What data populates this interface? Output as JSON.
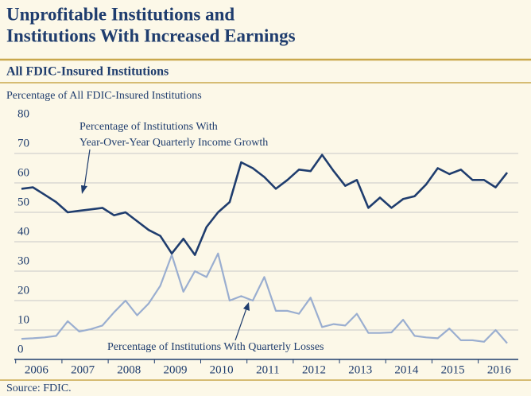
{
  "chart_data": {
    "type": "line",
    "title": [
      "Unprofitable Institutions and",
      "Institutions With Increased Earnings"
    ],
    "subtitle": "All FDIC-Insured Institutions",
    "y_label": "Percentage of All FDIC-Insured Institutions",
    "source": "Source: FDIC.",
    "categories": [
      "2006",
      null,
      null,
      null,
      "2007",
      null,
      null,
      null,
      "2008",
      null,
      null,
      null,
      "2009",
      null,
      null,
      null,
      "2010",
      null,
      null,
      null,
      "2011",
      null,
      null,
      null,
      "2012",
      null,
      null,
      null,
      "2013",
      null,
      null,
      null,
      "2014",
      null,
      null,
      null,
      "2015",
      null,
      null,
      null,
      "2016",
      null,
      null
    ],
    "series": [
      {
        "name": "Percentage of Institutions With Year-Over-Year Quarterly Income Growth",
        "color": "#1f3d6e",
        "values": [
          58,
          58.5,
          56,
          53.5,
          50,
          50.5,
          51,
          51.5,
          49,
          50,
          47,
          44,
          42,
          36,
          41,
          35.5,
          45,
          50,
          53.5,
          67,
          65,
          62,
          58,
          61,
          64.5,
          64,
          69.5,
          64,
          59,
          61,
          51.5,
          55,
          51.5,
          54.5,
          55.5,
          59.5,
          65,
          63,
          64.5,
          61,
          61,
          58.5,
          63.5
        ]
      },
      {
        "name": "Percentage of Institutions With Quarterly Losses",
        "color": "#9aaed0",
        "values": [
          7,
          7.2,
          7.5,
          8,
          13,
          9.5,
          10.3,
          11.5,
          16,
          20,
          15,
          19,
          25,
          35.5,
          23,
          30,
          28,
          36,
          20,
          21.5,
          20,
          28,
          16.5,
          16.5,
          15.5,
          21,
          11,
          12,
          11.5,
          15.5,
          9,
          9,
          9.2,
          13.5,
          8,
          7.5,
          7.2,
          10.5,
          6.5,
          6.5,
          6,
          10,
          5.5
        ]
      }
    ],
    "annotations": [
      {
        "lines": [
          "Percentage of Institutions With",
          "Year-Over-Year Quarterly Income Growth"
        ]
      },
      {
        "lines": [
          "Percentage of Institutions With Quarterly Losses"
        ]
      }
    ],
    "ylim": [
      0,
      80
    ],
    "yticks": [
      0,
      10,
      20,
      30,
      40,
      50,
      60,
      70,
      80
    ],
    "grid": true
  }
}
